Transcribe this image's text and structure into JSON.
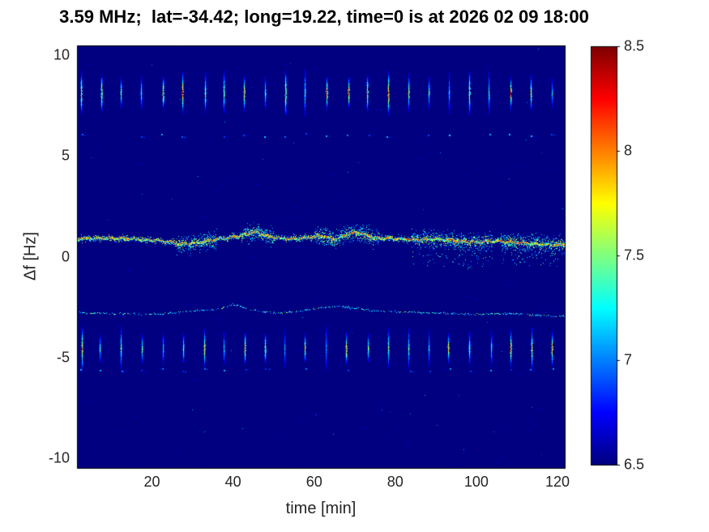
{
  "figure": {
    "background": "#ffffff",
    "title_color": "#000000",
    "label_color": "#262626",
    "plot_background_color": "#00008f"
  },
  "chart_data": {
    "type": "heatmap",
    "title": "3.59 MHz;  lat=-34.42; long=19.22, time=0 is at 2026 02 09 18:00",
    "xlabel": "time [min]",
    "ylabel": "Δf [Hz]",
    "xlim": [
      1.5,
      121.8
    ],
    "ylim": [
      -10.5,
      10.5
    ],
    "grid": false,
    "x_ticks": [
      {
        "v": 20,
        "label": "20"
      },
      {
        "v": 40,
        "label": "40"
      },
      {
        "v": 60,
        "label": "60"
      },
      {
        "v": 80,
        "label": "80"
      },
      {
        "v": 100,
        "label": "100"
      },
      {
        "v": 120,
        "label": "120"
      }
    ],
    "y_ticks": [
      {
        "v": 10,
        "label": "10"
      },
      {
        "v": 5,
        "label": "5"
      },
      {
        "v": 0,
        "label": "0"
      },
      {
        "v": -5,
        "label": "-5"
      },
      {
        "v": -10,
        "label": "-10"
      }
    ],
    "colorbar": {
      "min": 6.5,
      "max": 8.5,
      "colormap": "jet",
      "position": "right",
      "ticks": [
        {
          "v": 8.5,
          "label": "8.5"
        },
        {
          "v": 8,
          "label": "8"
        },
        {
          "v": 7.5,
          "label": "7.5"
        },
        {
          "v": 7,
          "label": "7"
        },
        {
          "v": 6.5,
          "label": "6.5"
        }
      ]
    },
    "background_value": 6.5,
    "features": {
      "main_trace": {
        "description": "strong wiggly Doppler trace near +1 Hz, red core with blue-cyan scatter halo",
        "x": [
          1.5,
          8,
          15,
          22,
          27,
          31,
          36,
          41,
          45,
          49,
          54,
          58,
          62,
          65,
          68,
          71,
          75,
          80,
          85,
          90,
          95,
          100,
          105,
          110,
          115,
          119,
          121.8
        ],
        "y": [
          0.9,
          0.95,
          0.9,
          0.8,
          0.65,
          0.7,
          0.9,
          1.0,
          1.25,
          1.0,
          0.9,
          0.95,
          1.05,
          0.85,
          1.15,
          1.2,
          0.95,
          0.9,
          0.85,
          0.9,
          0.8,
          0.75,
          0.8,
          0.7,
          0.65,
          0.6,
          0.6
        ],
        "peak_value": 8.4,
        "disturbance_windows": [
          [
            26,
            36
          ],
          [
            42,
            50
          ],
          [
            60,
            76
          ],
          [
            84,
            104
          ],
          [
            106,
            122
          ]
        ],
        "below_scatter_windows": [
          [
            84,
            104,
            1.2
          ],
          [
            106,
            122,
            0.9
          ]
        ]
      },
      "secondary_trace": {
        "description": "weak dotted cyan-green trace near -2.7 Hz",
        "x": [
          1.5,
          10,
          20,
          30,
          36,
          40,
          44,
          50,
          56,
          62,
          66,
          70,
          76,
          84,
          92,
          100,
          108,
          115,
          121.8
        ],
        "y": [
          -2.75,
          -2.8,
          -2.85,
          -2.7,
          -2.6,
          -2.35,
          -2.6,
          -2.8,
          -2.7,
          -2.5,
          -2.45,
          -2.55,
          -2.7,
          -2.75,
          -2.8,
          -2.85,
          -2.8,
          -2.9,
          -2.95
        ],
        "peak_value": 7.4
      },
      "upper_pulse_band": {
        "description": "periodic vertical bursts near +8 Hz",
        "center_hz": 8.15,
        "half_height_hz": 0.95,
        "period_min": 5.05,
        "start_min": 2.4,
        "value_min": 7.3,
        "value_max": 8.45
      },
      "upper_faint_row": {
        "description": "faint dotted row near +6 Hz",
        "center_hz": 6.05,
        "value": 7.0
      },
      "lower_pulse_band": {
        "description": "periodic vertical bursts near -4.5 Hz",
        "center_hz": -4.55,
        "half_height_hz": 0.95,
        "period_min": 5.05,
        "start_min": 2.4,
        "value_min": 7.2,
        "value_max": 8.3
      },
      "lower_faint_row": {
        "description": "faint dotted row near -5.6 Hz",
        "center_hz": -5.6,
        "value": 6.95
      }
    }
  }
}
